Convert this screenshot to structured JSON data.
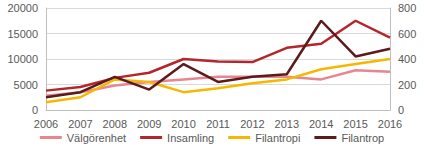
{
  "chart_data": {
    "type": "line",
    "categories": [
      "2006",
      "2007",
      "2008",
      "2009",
      "2010",
      "2011",
      "2012",
      "2013",
      "2014",
      "2015",
      "2016"
    ],
    "series": [
      {
        "name": "Välgörenhet",
        "color": "#e8868f",
        "values": [
          2800,
          3500,
          4800,
          5500,
          6000,
          6500,
          6500,
          6500,
          6000,
          7800,
          7500
        ]
      },
      {
        "name": "Insamling",
        "color": "#b3262b",
        "values": [
          3800,
          4500,
          6300,
          7300,
          10000,
          9500,
          9400,
          12200,
          13000,
          17500,
          14200
        ]
      },
      {
        "name": "Filantropi",
        "color": "#f5b800",
        "axis": "y2",
        "values": [
          60,
          100,
          240,
          220,
          140,
          170,
          210,
          240,
          320,
          360,
          400
        ]
      },
      {
        "name": "Filantrop",
        "color": "#5c1a1a",
        "axis": "y2",
        "values": [
          100,
          140,
          260,
          160,
          360,
          220,
          260,
          280,
          700,
          420,
          480
        ]
      }
    ],
    "ylim": [
      0,
      20000
    ],
    "yticks": [
      0,
      5000,
      10000,
      15000,
      20000
    ],
    "y2lim": [
      0,
      800
    ],
    "y2ticks": [
      0,
      200,
      400,
      600,
      800
    ],
    "grid": true,
    "legend": "bottom",
    "marker": "none",
    "line_style": "solid"
  }
}
